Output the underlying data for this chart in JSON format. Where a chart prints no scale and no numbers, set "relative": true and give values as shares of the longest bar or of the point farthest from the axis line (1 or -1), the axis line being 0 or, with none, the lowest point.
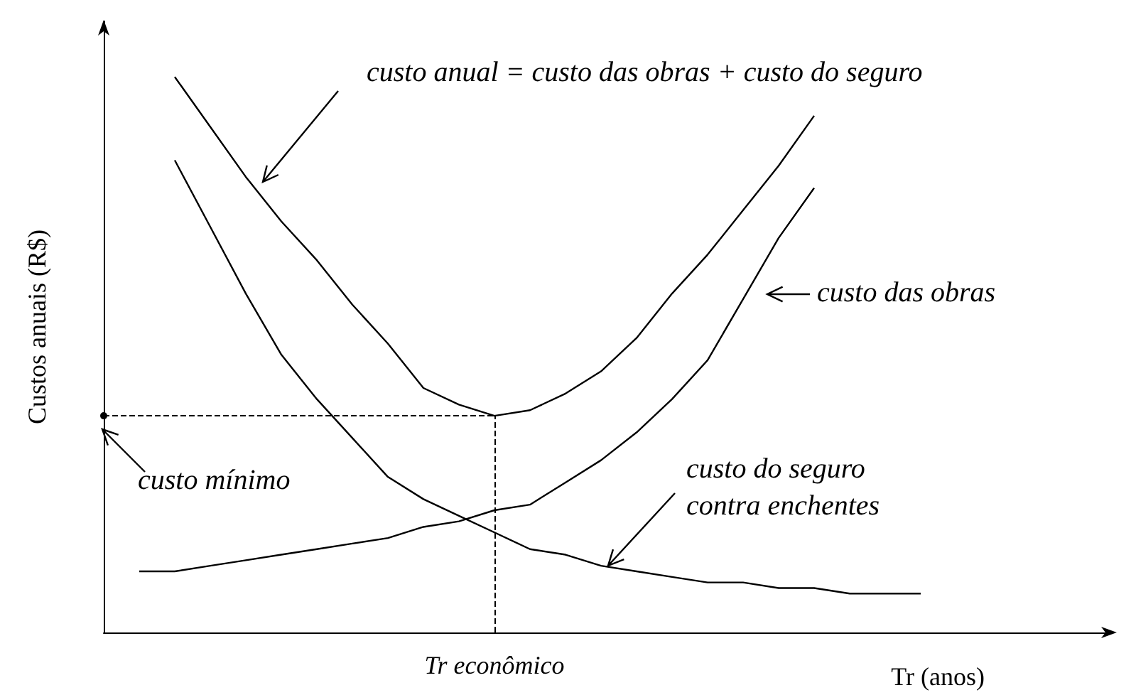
{
  "chart_data": {
    "type": "line",
    "relative": true,
    "xlabel": "Tr (anos)",
    "ylabel": "Custos anuais (R$)",
    "categories": [
      null,
      null,
      null,
      null,
      null,
      null,
      null,
      null,
      null,
      null,
      null,
      null,
      null,
      null,
      null,
      null,
      null,
      null,
      null,
      null,
      null,
      null,
      null,
      null,
      null,
      null,
      null,
      null,
      null
    ],
    "series": [
      {
        "name": "custo anual = custo das obras + custo do seguro",
        "color": "#000000",
        "values": [
          null,
          null,
          1.0,
          0.91,
          0.82,
          0.74,
          0.67,
          0.59,
          0.52,
          0.44,
          0.41,
          0.39,
          0.4,
          0.43,
          0.47,
          0.53,
          0.61,
          0.68,
          0.76,
          0.84,
          0.93,
          null,
          null,
          null,
          null,
          null,
          null,
          null,
          null
        ]
      },
      {
        "name": "custo das obras",
        "color": "#000000",
        "values": [
          null,
          0.11,
          0.11,
          0.12,
          0.13,
          0.14,
          0.15,
          0.16,
          0.17,
          0.19,
          0.2,
          0.22,
          0.23,
          0.27,
          0.31,
          0.36,
          0.42,
          0.49,
          0.6,
          0.71,
          0.8,
          null,
          null,
          null,
          null,
          null,
          null,
          null,
          null
        ]
      },
      {
        "name": "custo do seguro\ncontra enchentes",
        "color": "#000000",
        "values": [
          null,
          null,
          0.85,
          0.73,
          0.61,
          0.5,
          0.42,
          0.35,
          0.28,
          0.24,
          0.21,
          0.18,
          0.15,
          0.14,
          0.12,
          0.11,
          0.1,
          0.09,
          0.09,
          0.08,
          0.08,
          0.07,
          0.07,
          0.07,
          null,
          null,
          null,
          null,
          null
        ]
      }
    ],
    "annotations": [
      "Tr econômico"
    ],
    "ref_lines": [
      {
        "axis": "y",
        "value": 0.39,
        "label": "custo mínimo",
        "line_style": "dashed"
      }
    ]
  }
}
